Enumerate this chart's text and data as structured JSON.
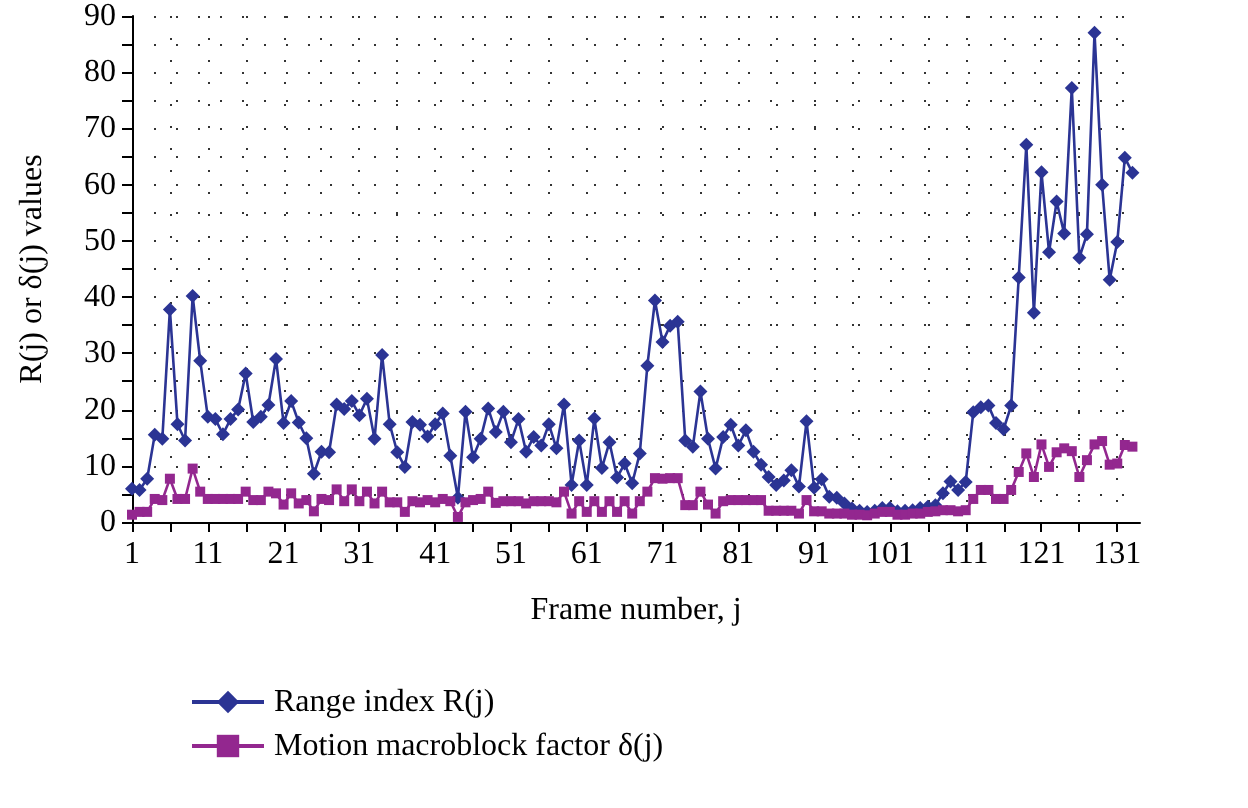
{
  "chart_data": {
    "type": "line",
    "xlabel": "Frame number, j",
    "ylabel": "R(j) or δ(j) values",
    "x": [
      1,
      2,
      3,
      4,
      5,
      6,
      7,
      8,
      9,
      10,
      11,
      12,
      13,
      14,
      15,
      16,
      17,
      18,
      19,
      20,
      21,
      22,
      23,
      24,
      25,
      26,
      27,
      28,
      29,
      30,
      31,
      32,
      33,
      34,
      35,
      36,
      37,
      38,
      39,
      40,
      41,
      42,
      43,
      44,
      45,
      46,
      47,
      48,
      49,
      50,
      51,
      52,
      53,
      54,
      55,
      56,
      57,
      58,
      59,
      60,
      61,
      62,
      63,
      64,
      65,
      66,
      67,
      68,
      69,
      70,
      71,
      72,
      73,
      74,
      75,
      76,
      77,
      78,
      79,
      80,
      81,
      82,
      83,
      84,
      85,
      86,
      87,
      88,
      89,
      90,
      91,
      92,
      93,
      94,
      95,
      96,
      97,
      98,
      99,
      100,
      101,
      102,
      103,
      104,
      105,
      106,
      107,
      108,
      109,
      110,
      111,
      112,
      113,
      114,
      115,
      116,
      117,
      118,
      119,
      120,
      121,
      122,
      123,
      124,
      125,
      126,
      127,
      128,
      129,
      130,
      131,
      132,
      133
    ],
    "series": [
      {
        "name": "Range index R(j)",
        "color": "#2b3494",
        "marker": "diamond",
        "values": [
          5.9,
          5.7,
          7.7,
          15.5,
          14.8,
          37.8,
          17.4,
          14.5,
          40.2,
          28.7,
          18.7,
          18.3,
          15.6,
          18.3,
          20,
          26.4,
          17.8,
          18.7,
          20.8,
          29,
          17.6,
          21.5,
          17.7,
          14.9,
          8.6,
          12.5,
          12.4,
          20.9,
          20.1,
          21.5,
          19,
          21.9,
          14.8,
          29.7,
          17.4,
          12.4,
          9.8,
          17.8,
          17.3,
          15.2,
          17.4,
          19.3,
          11.8,
          4.3,
          19.6,
          11.5,
          14.8,
          20.2,
          16,
          19.6,
          14.2,
          18.3,
          12.5,
          15.1,
          13.6,
          17.4,
          13.1,
          20.9,
          6.6,
          14.5,
          6.6,
          18.4,
          9.6,
          14.2,
          7.9,
          10.4,
          6.9,
          12.2,
          27.8,
          39.4,
          32,
          34.9,
          35.6,
          14.5,
          13.4,
          23.2,
          14.8,
          9.5,
          15.1,
          17.3,
          13.6,
          16.3,
          12.5,
          10.2,
          8,
          6.6,
          7.4,
          9.2,
          6.3,
          17.9,
          6.1,
          7.6,
          4.5,
          4.3,
          3.3,
          2.4,
          2,
          1.8,
          2,
          2.5,
          2.5,
          1.9,
          2,
          2.1,
          2.5,
          2.7,
          3,
          5.1,
          7.2,
          5.7,
          7.1,
          19.5,
          20.4,
          20.7,
          17.6,
          16.5,
          20.7,
          43.5,
          67.1,
          37.2,
          62.2,
          48,
          57,
          51.3,
          77.2,
          47,
          51.2,
          87,
          60,
          43.1,
          49.8,
          64.8,
          62.1
        ]
      },
      {
        "name": "Motion macroblock factor δ(j)",
        "color": "#93278f",
        "marker": "square",
        "values": [
          1.3,
          1.8,
          1.8,
          4.1,
          3.9,
          7.7,
          4.1,
          4.1,
          9.5,
          5.4,
          4.1,
          4.1,
          4.1,
          4.1,
          4.1,
          5.4,
          3.9,
          3.9,
          5.4,
          5.1,
          3.1,
          5.1,
          3.3,
          3.9,
          1.9,
          4.1,
          3.9,
          5.8,
          3.7,
          5.8,
          3.7,
          5.4,
          3.3,
          5.4,
          3.5,
          3.5,
          1.8,
          3.7,
          3.5,
          3.9,
          3.5,
          4.1,
          3.7,
          0.9,
          3.5,
          3.9,
          4.1,
          5.4,
          3.4,
          3.7,
          3.7,
          3.7,
          3.3,
          3.7,
          3.7,
          3.7,
          3.5,
          5.4,
          1.5,
          3.7,
          1.8,
          3.7,
          1.8,
          3.7,
          1.8,
          3.7,
          1.5,
          3.7,
          5.4,
          7.8,
          7.7,
          7.8,
          7.8,
          3,
          3,
          5.4,
          3.1,
          1.5,
          3.7,
          3.9,
          3.9,
          3.9,
          3.9,
          3.9,
          2,
          2,
          2,
          2,
          1.5,
          3.9,
          1.9,
          1.9,
          1.5,
          1.5,
          1.5,
          1.3,
          1.3,
          1.2,
          1.5,
          1.8,
          1.8,
          1.3,
          1.3,
          1.5,
          1.5,
          1.8,
          1.9,
          2.1,
          2.1,
          1.9,
          2.1,
          4.1,
          5.7,
          5.7,
          4.1,
          4.1,
          5.7,
          8.9,
          12.2,
          8,
          13.8,
          9.8,
          12.4,
          13.1,
          12.6,
          8,
          11,
          13.8,
          14.4,
          10.2,
          10.4,
          13.7,
          13.4
        ]
      }
    ],
    "xlim": [
      1,
      134
    ],
    "xticks": [
      1,
      {
        "value": 6,
        "label": null
      },
      11,
      {
        "value": 16,
        "label": null
      },
      21,
      {
        "value": 26,
        "label": null
      },
      31,
      {
        "value": 36,
        "label": null
      },
      41,
      {
        "value": 46,
        "label": null
      },
      51,
      {
        "value": 56,
        "label": null
      },
      61,
      {
        "value": 66,
        "label": null
      },
      71,
      {
        "value": 76,
        "label": null
      },
      81,
      {
        "value": 86,
        "label": null
      },
      91,
      {
        "value": 96,
        "label": null
      },
      101,
      {
        "value": 106,
        "label": null
      },
      111,
      {
        "value": 116,
        "label": null
      },
      121,
      {
        "value": 126,
        "label": null
      },
      131
    ],
    "ylim": [
      0,
      90
    ],
    "yticks": [
      0,
      {
        "value": 5,
        "label": null
      },
      10,
      {
        "value": 15,
        "label": null
      },
      20,
      {
        "value": 25,
        "label": null
      },
      30,
      {
        "value": 35,
        "label": null
      },
      40,
      {
        "value": 45,
        "label": null
      },
      50,
      {
        "value": 55,
        "label": null
      },
      60,
      {
        "value": 65,
        "label": null
      },
      70,
      {
        "value": 75,
        "label": null
      },
      80,
      {
        "value": 85,
        "label": null
      },
      90
    ],
    "grid": true,
    "legend": "bottom",
    "line_style": "solid"
  }
}
